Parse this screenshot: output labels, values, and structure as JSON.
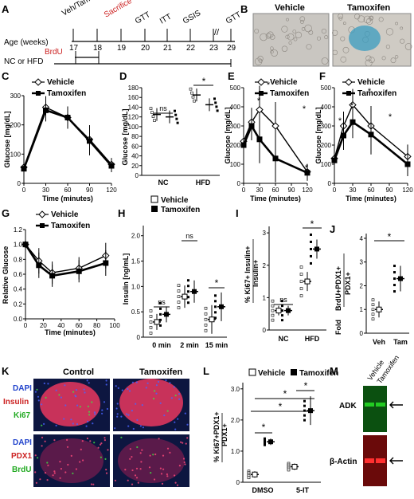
{
  "panels": {
    "A": {
      "letter": "A",
      "row_labels": {
        "age": "Age (weeks)",
        "brdu": "BrdU",
        "diet": "NC or HFD"
      },
      "weeks": [
        "17",
        "18",
        "19",
        "20",
        "21",
        "22",
        "23",
        "29"
      ],
      "events": {
        "vehtam": "Veh/Tam",
        "sacrifice": "Sacrifice",
        "gtt1": "GTT",
        "itt": "ITT",
        "gsis": "GSIS",
        "gtt2": "GTT"
      },
      "colors": {
        "sacrifice": "#cc2222",
        "brdu": "#cc2222"
      }
    },
    "B": {
      "letter": "B",
      "labels": [
        "Vehicle",
        "Tamoxifen"
      ],
      "stain_color": "#3a9cc0"
    },
    "C": {
      "letter": "C",
      "ylabel": "Glucose [mg/dL]",
      "xlabel": "Time (minutes)",
      "legend": [
        "Vehicle",
        "Tamoxifen"
      ],
      "yticks": [
        "0",
        "100",
        "200",
        "300"
      ],
      "xticks": [
        "0",
        "30",
        "60",
        "90",
        "120"
      ]
    },
    "D": {
      "letter": "D",
      "ylabel": "Glucose [mg/dL]",
      "yticks": [
        "0",
        "20",
        "40",
        "60",
        "80",
        "100",
        "120",
        "140",
        "160",
        "180"
      ],
      "groups": [
        "NC",
        "HFD"
      ],
      "ns": "ns",
      "star": "*",
      "legend": [
        "Vehicle",
        "Tamoxifen"
      ]
    },
    "E": {
      "letter": "E",
      "ylabel": "Glucose [mg/dL]",
      "xlabel": "Time (minutes)",
      "legend": [
        "Vehicle",
        "Tamoxifen"
      ],
      "yticks": [
        "0",
        "100",
        "200",
        "300",
        "400",
        "500"
      ],
      "xticks": [
        "0",
        "30",
        "60",
        "90",
        "120"
      ],
      "stars": [
        "*",
        "*",
        "*",
        "*"
      ]
    },
    "F": {
      "letter": "F",
      "ylabel": "Glucose [mg/dL]",
      "xlabel": "Time (minutes)",
      "legend": [
        "Vehicle",
        "Tamoxifen"
      ],
      "yticks": [
        "0",
        "100",
        "200",
        "300",
        "400",
        "500"
      ],
      "xticks": [
        "0",
        "30",
        "60",
        "90",
        "120"
      ],
      "stars": [
        "*",
        "*",
        "*",
        "*"
      ]
    },
    "G": {
      "letter": "G",
      "ylabel": "Relative Glucose",
      "xlabel": "Time (minutes)",
      "legend": [
        "Vehicle",
        "Tamoxifen"
      ],
      "yticks": [
        "0.0",
        "0.2",
        "0.4",
        "0.6",
        "0.8",
        "1.0",
        "1.2"
      ],
      "xticks": [
        "0",
        "20",
        "40",
        "60",
        "80",
        "100"
      ]
    },
    "H": {
      "letter": "H",
      "ylabel": "Insulin [ng/mL]",
      "yticks": [
        "0",
        "0.5",
        "1.0",
        "1.5",
        "2.0"
      ],
      "groups": [
        "0 min",
        "2 min",
        "15 min"
      ],
      "ns": "ns",
      "star": "*"
    },
    "I": {
      "letter": "I",
      "ylabel_parts": [
        "% Ki67",
        "+",
        "Insulin",
        "+",
        "Insulin",
        "+"
      ],
      "yticks": [
        "0",
        "1",
        "2",
        "3"
      ],
      "groups": [
        "NC",
        "HFD"
      ],
      "ns": "ns",
      "star": "*"
    },
    "J": {
      "letter": "J",
      "ylabel_parts": [
        "Fold",
        "BrdU",
        "+",
        "PDX1",
        "+",
        "PDX1",
        "+"
      ],
      "yticks": [
        "0",
        "1",
        "2",
        "3",
        "4"
      ],
      "groups": [
        "Veh",
        "Tam"
      ],
      "star": "*"
    },
    "K": {
      "letter": "K",
      "columns": [
        "Control",
        "Tamoxifen"
      ],
      "top_stains": [
        {
          "text": "DAPI",
          "color": "#2244cc"
        },
        {
          "text": "Insulin",
          "color": "#cc2222"
        },
        {
          "text": "Ki67",
          "color": "#22aa22"
        }
      ],
      "bottom_stains": [
        {
          "text": "DAPI",
          "color": "#2244cc"
        },
        {
          "text": "PDX1",
          "color": "#cc2222"
        },
        {
          "text": "BrdU",
          "color": "#22aa22"
        }
      ]
    },
    "L": {
      "letter": "L",
      "legend": [
        "Vehicle",
        "Tamoxifen"
      ],
      "ylabel_parts": [
        "% Ki67",
        "+",
        "PDX1",
        "+",
        "PDX1",
        "+"
      ],
      "yticks": [
        "0",
        "1.0",
        "2.0",
        "3.0"
      ],
      "groups": [
        "DMSO",
        "5-IT"
      ],
      "stars": [
        "*",
        "*",
        "*",
        "*"
      ]
    },
    "M": {
      "letter": "M",
      "lanes": [
        "Vehicle",
        "Tamoxifen"
      ],
      "bands": [
        "ADK",
        "β-Actin"
      ],
      "colors": {
        "adk": "#22cc22",
        "actin": "#ee2222"
      }
    }
  },
  "chart_data": [
    {
      "panel": "C",
      "type": "line",
      "x": [
        0,
        30,
        60,
        90,
        120
      ],
      "series": [
        {
          "name": "Vehicle",
          "values": [
            55,
            260,
            225,
            150,
            65
          ]
        },
        {
          "name": "Tamoxifen",
          "values": [
            50,
            250,
            225,
            145,
            60
          ]
        }
      ],
      "xlabel": "Time (minutes)",
      "ylabel": "Glucose [mg/dL]",
      "xlim": [
        0,
        120
      ],
      "ylim": [
        0,
        300
      ]
    },
    {
      "panel": "D",
      "type": "bar",
      "categories": [
        "NC",
        "HFD"
      ],
      "series": [
        {
          "name": "Vehicle",
          "values": [
            125,
            165
          ]
        },
        {
          "name": "Tamoxifen",
          "values": [
            120,
            145
          ]
        }
      ],
      "ylabel": "Glucose [mg/dL]",
      "ylim": [
        0,
        180
      ]
    },
    {
      "panel": "E",
      "type": "line",
      "x": [
        0,
        15,
        30,
        60,
        120
      ],
      "series": [
        {
          "name": "Vehicle",
          "values": [
            220,
            320,
            385,
            300,
            60
          ]
        },
        {
          "name": "Tamoxifen",
          "values": [
            200,
            300,
            230,
            130,
            55
          ]
        }
      ],
      "xlabel": "Time (minutes)",
      "ylabel": "Glucose [mg/dL]",
      "xlim": [
        0,
        120
      ],
      "ylim": [
        0,
        500
      ]
    },
    {
      "panel": "F",
      "type": "line",
      "x": [
        0,
        15,
        30,
        60,
        120
      ],
      "series": [
        {
          "name": "Vehicle",
          "values": [
            130,
            300,
            410,
            300,
            140
          ]
        },
        {
          "name": "Tamoxifen",
          "values": [
            120,
            250,
            320,
            255,
            100
          ]
        }
      ],
      "xlabel": "Time (minutes)",
      "ylabel": "Glucose [mg/dL]",
      "xlim": [
        0,
        120
      ],
      "ylim": [
        0,
        500
      ]
    },
    {
      "panel": "G",
      "type": "line",
      "x": [
        0,
        15,
        30,
        60,
        90
      ],
      "series": [
        {
          "name": "Vehicle",
          "values": [
            1.0,
            0.78,
            0.62,
            0.68,
            0.85
          ]
        },
        {
          "name": "Tamoxifen",
          "values": [
            1.0,
            0.72,
            0.58,
            0.64,
            0.75
          ]
        }
      ],
      "xlabel": "Time (minutes)",
      "ylabel": "Relative Glucose",
      "xlim": [
        0,
        100
      ],
      "ylim": [
        0,
        1.2
      ]
    },
    {
      "panel": "H",
      "type": "bar",
      "categories": [
        "0 min",
        "2 min",
        "15 min"
      ],
      "series": [
        {
          "name": "Vehicle",
          "values": [
            0.3,
            0.8,
            0.35
          ]
        },
        {
          "name": "Tamoxifen",
          "values": [
            0.45,
            0.9,
            0.6
          ]
        }
      ],
      "ylabel": "Insulin [ng/mL]",
      "ylim": [
        0,
        2.2
      ]
    },
    {
      "panel": "I",
      "type": "bar",
      "categories": [
        "NC",
        "HFD"
      ],
      "series": [
        {
          "name": "Vehicle",
          "values": [
            0.6,
            1.5
          ]
        },
        {
          "name": "Tamoxifen",
          "values": [
            0.6,
            2.5
          ]
        }
      ],
      "ylim": [
        0,
        3.2
      ]
    },
    {
      "panel": "J",
      "type": "bar",
      "categories": [
        "Veh",
        "Tam"
      ],
      "values": [
        1.0,
        2.3
      ],
      "ylim": [
        0,
        4.2
      ]
    },
    {
      "panel": "L",
      "type": "bar",
      "categories": [
        "DMSO",
        "5-IT"
      ],
      "series": [
        {
          "name": "Vehicle",
          "values": [
            0.25,
            0.5
          ]
        },
        {
          "name": "Tamoxifen",
          "values": [
            1.3,
            2.3
          ]
        }
      ],
      "ylim": [
        0,
        3.2
      ]
    }
  ]
}
